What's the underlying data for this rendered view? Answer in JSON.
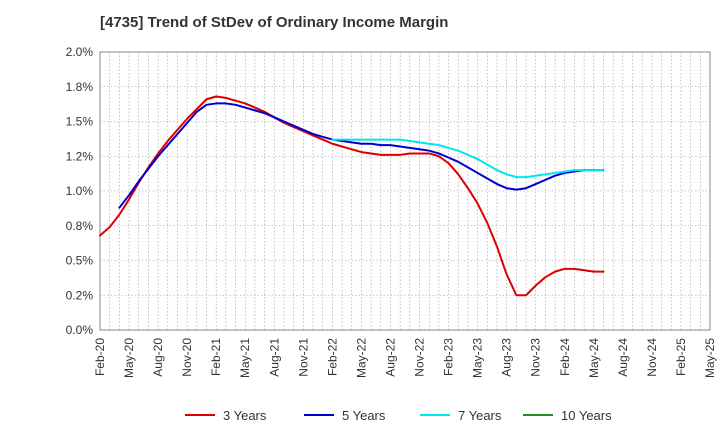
{
  "chart_data": {
    "type": "line",
    "title": "[4735]  Trend of StDev of Ordinary Income Margin",
    "xlabel": "",
    "ylabel": "",
    "ylim": [
      0,
      0.02
    ],
    "grid": true,
    "legend_position": "bottom",
    "x_tick_labels": [
      "Feb-20",
      "May-20",
      "Aug-20",
      "Nov-20",
      "Feb-21",
      "May-21",
      "Aug-21",
      "Nov-21",
      "Feb-22",
      "May-22",
      "Aug-22",
      "Nov-22",
      "Feb-23",
      "May-23",
      "Aug-23",
      "Nov-23",
      "Feb-24",
      "May-24",
      "Aug-24",
      "Nov-24",
      "Feb-25",
      "May-25"
    ],
    "y_tick_values": [
      0,
      0.0025,
      0.005,
      0.0075,
      0.01,
      0.0125,
      0.015,
      0.0175,
      0.02
    ],
    "y_tick_labels": [
      "0.0%",
      "0.2%",
      "0.5%",
      "0.8%",
      "1.0%",
      "1.2%",
      "1.5%",
      "1.8%",
      "2.0%"
    ],
    "series": [
      {
        "name": "3 Years",
        "color": "#dd0000",
        "values": [
          0.0068,
          0.0074,
          0.0083,
          0.0094,
          0.0106,
          0.0117,
          0.0127,
          0.0136,
          0.0144,
          0.0152,
          0.0159,
          0.0166,
          0.0168,
          0.0167,
          0.0165,
          0.0163,
          0.016,
          0.0157,
          0.0153,
          0.0149,
          0.0146,
          0.0143,
          0.014,
          0.0137,
          0.0134,
          0.0132,
          0.013,
          0.0128,
          0.0127,
          0.0126,
          0.0126,
          0.0126,
          0.0127,
          0.0127,
          0.0127,
          0.0125,
          0.012,
          0.0112,
          0.0102,
          0.0091,
          0.0077,
          0.006,
          0.004,
          0.0025,
          0.0025,
          0.0032,
          0.0038,
          0.0042,
          0.0044,
          0.0044,
          0.0043,
          0.0042,
          0.0042
        ]
      },
      {
        "name": "5 Years",
        "color": "#0000cc",
        "values": [
          null,
          null,
          0.0088,
          0.0097,
          0.0107,
          0.0116,
          0.0125,
          0.0133,
          0.0141,
          0.0149,
          0.0157,
          0.0162,
          0.0163,
          0.0163,
          0.0162,
          0.016,
          0.0158,
          0.0156,
          0.0153,
          0.015,
          0.0147,
          0.0144,
          0.0141,
          0.0139,
          0.0137,
          0.0136,
          0.0135,
          0.0134,
          0.0134,
          0.0133,
          0.0133,
          0.0132,
          0.0131,
          0.013,
          0.0129,
          0.0127,
          0.0124,
          0.0121,
          0.0117,
          0.0113,
          0.0109,
          0.0105,
          0.0102,
          0.0101,
          0.0102,
          0.0105,
          0.0108,
          0.0111,
          0.0113,
          0.0114,
          0.0115,
          0.0115,
          0.0115
        ]
      },
      {
        "name": "7 Years",
        "color": "#00e5ee",
        "values": [
          null,
          null,
          null,
          null,
          null,
          null,
          null,
          null,
          null,
          null,
          null,
          null,
          null,
          null,
          null,
          null,
          null,
          null,
          null,
          null,
          null,
          null,
          null,
          null,
          0.0137,
          0.0137,
          0.0137,
          0.0137,
          0.0137,
          0.0137,
          0.0137,
          0.0137,
          0.0136,
          0.0135,
          0.0134,
          0.0133,
          0.0131,
          0.0129,
          0.0126,
          0.0123,
          0.0119,
          0.0115,
          0.0112,
          0.011,
          0.011,
          0.0111,
          0.0112,
          0.0113,
          0.0114,
          0.0115,
          0.0115,
          0.0115,
          0.0115
        ]
      },
      {
        "name": "10 Years",
        "color": "#228b22",
        "values": []
      }
    ]
  }
}
